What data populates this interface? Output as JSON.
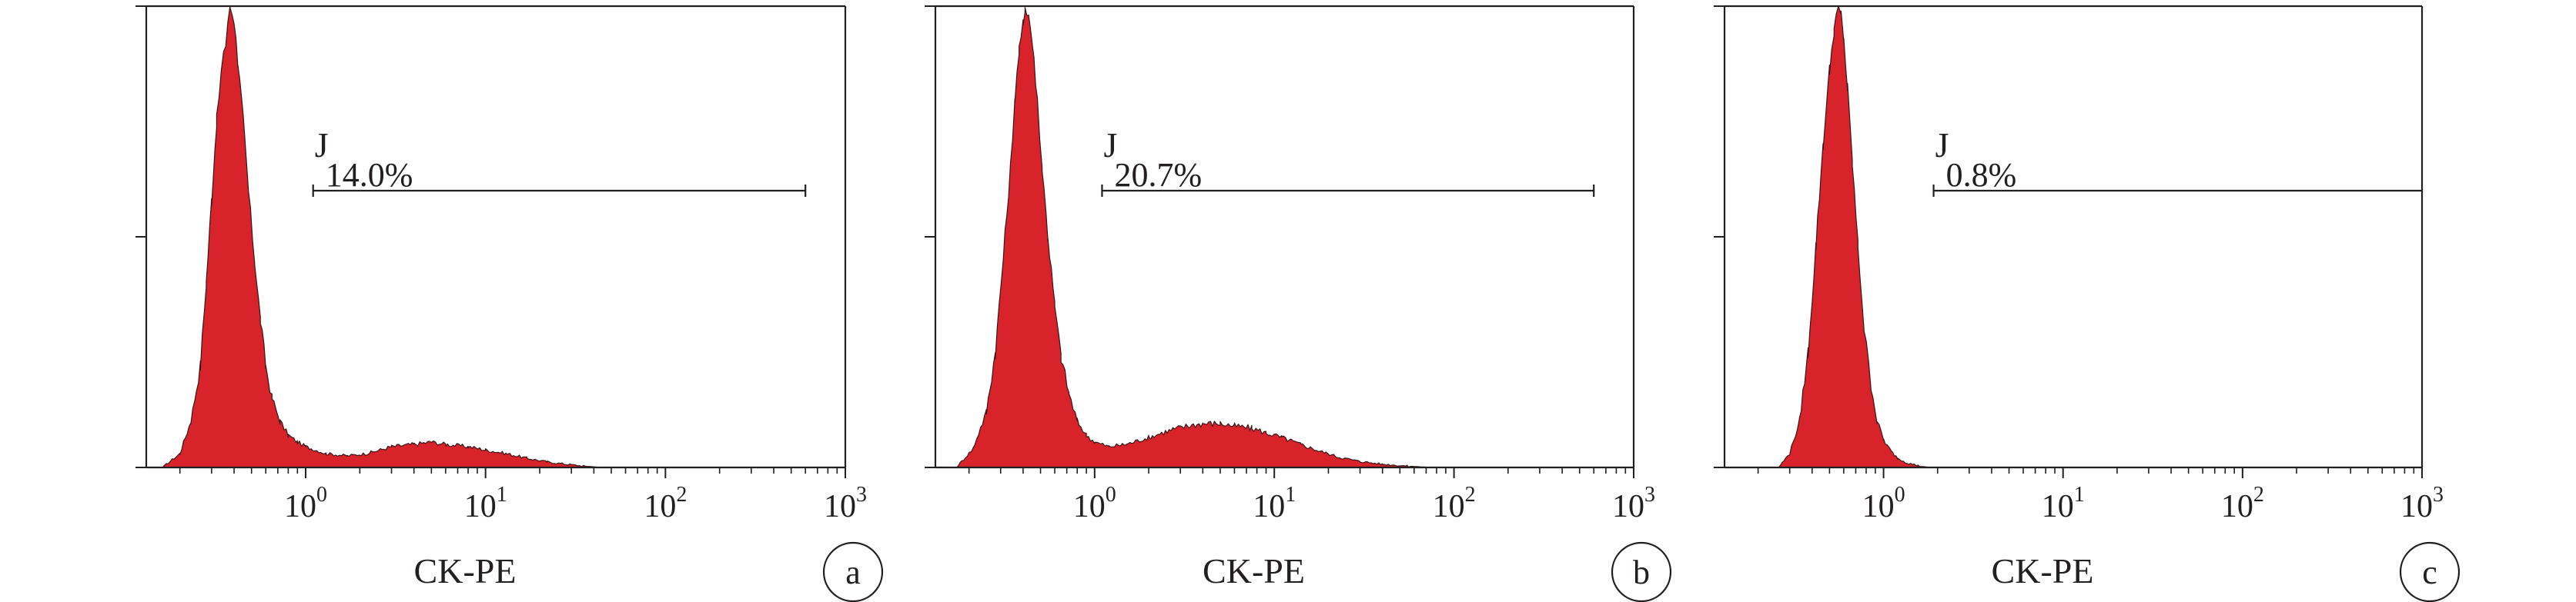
{
  "chart_data": [
    {
      "type": "area",
      "panel_label": "a",
      "xlabel": "CK-PE",
      "x_scale": "log",
      "xlim": [
        0.13,
        1000
      ],
      "x_ticks": [
        1,
        10,
        100,
        1000
      ],
      "x_tick_labels": [
        {
          "base": "10",
          "exp": "0"
        },
        {
          "base": "10",
          "exp": "1"
        },
        {
          "base": "10",
          "exp": "2"
        },
        {
          "base": "10",
          "exp": "3"
        }
      ],
      "ylim": [
        0,
        1
      ],
      "y_ticks": [
        0,
        0.5,
        1
      ],
      "fill_color": "#d9232b",
      "gate": {
        "name": "J",
        "percent": "14.0%",
        "x_start": 1.1,
        "x_end": 600,
        "level": 0.6
      },
      "series": [
        {
          "x": [
            0.16,
            0.2,
            0.23,
            0.26,
            0.28,
            0.3,
            0.32,
            0.34,
            0.36,
            0.37,
            0.38,
            0.4,
            0.42,
            0.45,
            0.48,
            0.52,
            0.56,
            0.6,
            0.65,
            0.72,
            0.8,
            0.9,
            1.0,
            1.3,
            1.7,
            2.2,
            3.0,
            4.0,
            5.0,
            6.0,
            8.0,
            10,
            13,
            17,
            22,
            28,
            35,
            45
          ],
          "y": [
            0,
            0.03,
            0.1,
            0.22,
            0.4,
            0.58,
            0.75,
            0.86,
            0.92,
            0.97,
            1.0,
            0.97,
            0.88,
            0.75,
            0.6,
            0.45,
            0.32,
            0.22,
            0.15,
            0.1,
            0.07,
            0.055,
            0.045,
            0.03,
            0.025,
            0.03,
            0.045,
            0.05,
            0.055,
            0.05,
            0.045,
            0.038,
            0.03,
            0.02,
            0.012,
            0.007,
            0.003,
            0
          ]
        }
      ]
    },
    {
      "type": "area",
      "panel_label": "b",
      "xlabel": "CK-PE",
      "x_scale": "log",
      "xlim": [
        0.13,
        1000
      ],
      "x_ticks": [
        1,
        10,
        100,
        1000
      ],
      "x_tick_labels": [
        {
          "base": "10",
          "exp": "0"
        },
        {
          "base": "10",
          "exp": "1"
        },
        {
          "base": "10",
          "exp": "2"
        },
        {
          "base": "10",
          "exp": "3"
        }
      ],
      "ylim": [
        0,
        1
      ],
      "y_ticks": [
        0,
        0.5,
        1
      ],
      "fill_color": "#d9232b",
      "gate": {
        "name": "J",
        "percent": "20.7%",
        "x_start": 1.1,
        "x_end": 600,
        "level": 0.6
      },
      "series": [
        {
          "x": [
            0.17,
            0.21,
            0.25,
            0.28,
            0.31,
            0.34,
            0.36,
            0.38,
            0.4,
            0.41,
            0.43,
            0.45,
            0.48,
            0.51,
            0.55,
            0.6,
            0.65,
            0.72,
            0.8,
            0.9,
            1.0,
            1.2,
            1.5,
            2.0,
            2.6,
            3.3,
            4.0,
            5.0,
            6.0,
            7.5,
            9.0,
            11,
            14,
            18,
            23,
            30,
            40,
            55,
            75
          ],
          "y": [
            0,
            0.04,
            0.12,
            0.25,
            0.45,
            0.65,
            0.8,
            0.9,
            0.96,
            1.0,
            0.98,
            0.92,
            0.8,
            0.65,
            0.5,
            0.35,
            0.24,
            0.16,
            0.1,
            0.07,
            0.055,
            0.045,
            0.05,
            0.065,
            0.08,
            0.09,
            0.095,
            0.095,
            0.09,
            0.085,
            0.075,
            0.065,
            0.05,
            0.035,
            0.022,
            0.013,
            0.007,
            0.003,
            0
          ]
        }
      ]
    },
    {
      "type": "area",
      "panel_label": "c",
      "xlabel": "CK-PE",
      "x_scale": "log",
      "xlim": [
        0.13,
        1000
      ],
      "x_ticks": [
        1,
        10,
        100,
        1000
      ],
      "x_tick_labels": [
        {
          "base": "10",
          "exp": "0"
        },
        {
          "base": "10",
          "exp": "1"
        },
        {
          "base": "10",
          "exp": "2"
        },
        {
          "base": "10",
          "exp": "3"
        }
      ],
      "ylim": [
        0,
        1
      ],
      "y_ticks": [
        0,
        0.5,
        1
      ],
      "fill_color": "#d9232b",
      "gate": {
        "name": "J",
        "percent": "0.8%",
        "x_start": 1.9,
        "x_end": 1000,
        "level": 0.6
      },
      "series": [
        {
          "x": [
            0.26,
            0.3,
            0.34,
            0.38,
            0.42,
            0.46,
            0.5,
            0.53,
            0.56,
            0.58,
            0.6,
            0.63,
            0.67,
            0.72,
            0.78,
            0.85,
            0.92,
            1.0,
            1.1,
            1.2,
            1.35,
            1.55,
            1.8
          ],
          "y": [
            0,
            0.03,
            0.1,
            0.25,
            0.48,
            0.7,
            0.86,
            0.95,
            1.0,
            0.98,
            0.93,
            0.82,
            0.66,
            0.48,
            0.3,
            0.18,
            0.1,
            0.06,
            0.035,
            0.02,
            0.01,
            0.004,
            0
          ]
        }
      ]
    }
  ]
}
